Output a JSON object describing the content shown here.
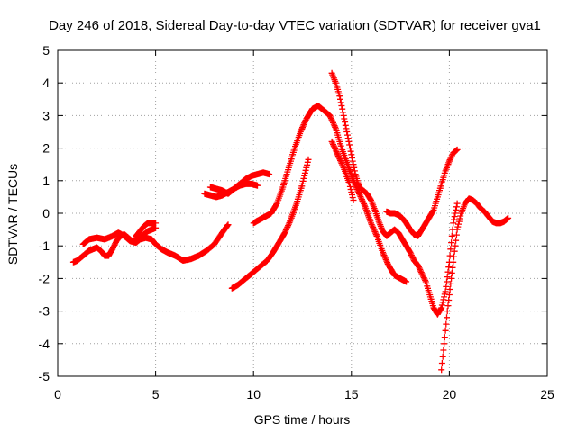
{
  "chart_data": {
    "type": "scatter",
    "title": "Day 246 of 2018, Sidereal Day-to-day VTEC variation (SDTVAR) for receiver gva1",
    "xlabel": "GPS time / hours",
    "ylabel": "SDTVAR / TECUs",
    "xlim": [
      0,
      25
    ],
    "ylim": [
      -5,
      5
    ],
    "xticks": [
      "0",
      "5",
      "10",
      "15",
      "20",
      "25"
    ],
    "yticks": [
      "-5",
      "-4",
      "-3",
      "-2",
      "-1",
      "0",
      "1",
      "2",
      "3",
      "4",
      "5"
    ],
    "grid": true,
    "legend": "none",
    "marker": "+",
    "color": "#ff0000",
    "series": [
      {
        "x": [
          0.8,
          1.0,
          1.2,
          1.4,
          1.6,
          1.8,
          2.0,
          2.2,
          2.4,
          2.6,
          2.8,
          3.0,
          3.2,
          3.4,
          3.6,
          3.8,
          4.0,
          4.2,
          4.4,
          4.6,
          4.8,
          5.0
        ],
        "y": [
          -1.5,
          -1.45,
          -1.35,
          -1.25,
          -1.15,
          -1.1,
          -1.05,
          -1.15,
          -1.3,
          -1.3,
          -1.1,
          -0.85,
          -0.7,
          -0.65,
          -0.75,
          -0.85,
          -0.8,
          -0.75,
          -0.65,
          -0.55,
          -0.5,
          -0.45
        ]
      },
      {
        "x": [
          1.3,
          1.6,
          2.0,
          2.4,
          2.8,
          3.1,
          3.4,
          3.7,
          4.0,
          4.2,
          4.5,
          4.8,
          5.0,
          5.3,
          5.6,
          6.0,
          6.4,
          6.8,
          7.2,
          7.6,
          8.0,
          8.4,
          8.7
        ],
        "y": [
          -0.95,
          -0.8,
          -0.75,
          -0.8,
          -0.7,
          -0.6,
          -0.7,
          -0.85,
          -0.9,
          -0.8,
          -0.75,
          -0.8,
          -0.95,
          -1.1,
          -1.2,
          -1.3,
          -1.45,
          -1.4,
          -1.3,
          -1.15,
          -0.95,
          -0.6,
          -0.35
        ]
      },
      {
        "x": [
          4.0,
          4.2,
          4.4,
          4.6,
          4.8,
          5.0
        ],
        "y": [
          -0.7,
          -0.55,
          -0.4,
          -0.3,
          -0.3,
          -0.3
        ]
      },
      {
        "x": [
          7.5,
          7.8,
          8.1,
          8.4,
          8.7,
          9.0,
          9.3,
          9.6,
          9.9,
          10.2
        ],
        "y": [
          0.6,
          0.55,
          0.5,
          0.55,
          0.65,
          0.75,
          0.85,
          0.9,
          0.9,
          0.85
        ]
      },
      {
        "x": [
          7.8,
          8.1,
          8.4,
          8.7,
          9.0,
          9.3,
          9.6,
          9.9,
          10.2,
          10.5,
          10.8
        ],
        "y": [
          0.8,
          0.75,
          0.7,
          0.6,
          0.75,
          0.9,
          1.05,
          1.15,
          1.2,
          1.25,
          1.2
        ]
      },
      {
        "x": [
          8.9,
          9.2,
          9.5,
          9.8,
          10.1,
          10.4,
          10.7,
          11.0,
          11.3,
          11.6,
          11.9,
          12.2,
          12.5,
          12.8
        ],
        "y": [
          -2.3,
          -2.2,
          -2.05,
          -1.9,
          -1.75,
          -1.6,
          -1.45,
          -1.2,
          -0.9,
          -0.6,
          -0.2,
          0.3,
          0.9,
          1.65
        ]
      },
      {
        "x": [
          10.0,
          10.3,
          10.6,
          10.9,
          11.2,
          11.5,
          11.8,
          12.1,
          12.4,
          12.7,
          13.0,
          13.3,
          13.6,
          13.9,
          14.2,
          14.5,
          14.8,
          15.1,
          15.4,
          15.7,
          16.0,
          16.3,
          16.6,
          16.9,
          17.2,
          17.5,
          17.8
        ],
        "y": [
          -0.3,
          -0.2,
          -0.1,
          0.0,
          0.3,
          0.8,
          1.4,
          2.0,
          2.5,
          2.9,
          3.2,
          3.3,
          3.15,
          3.0,
          2.6,
          2.0,
          1.5,
          1.0,
          0.6,
          0.2,
          -0.3,
          -0.7,
          -1.2,
          -1.6,
          -1.9,
          -2.0,
          -2.1
        ]
      },
      {
        "x": [
          14.0,
          14.2,
          14.4,
          14.6,
          14.8,
          15.0,
          15.2,
          15.4,
          15.6,
          15.8,
          16.0,
          16.2,
          16.4,
          16.6,
          16.8,
          17.0,
          17.2,
          17.4,
          17.6,
          17.8,
          18.0,
          18.2,
          18.4,
          18.6,
          18.8,
          19.0,
          19.2,
          19.4,
          19.6,
          19.8,
          20.0,
          20.2,
          20.4
        ],
        "y": [
          4.3,
          4.0,
          3.6,
          3.0,
          2.4,
          1.8,
          1.2,
          0.8,
          0.7,
          0.6,
          0.4,
          0.1,
          -0.25,
          -0.55,
          -0.7,
          -0.6,
          -0.5,
          -0.6,
          -0.8,
          -1.0,
          -1.2,
          -1.45,
          -1.6,
          -1.85,
          -2.1,
          -2.5,
          -2.9,
          -3.1,
          -2.9,
          -2.4,
          -1.5,
          -0.3,
          0.3
        ]
      },
      {
        "x": [
          14.0,
          14.3,
          14.6,
          14.9,
          15.1
        ],
        "y": [
          2.2,
          1.8,
          1.4,
          0.9,
          0.4
        ]
      },
      {
        "x": [
          16.8,
          17.0,
          17.2,
          17.4,
          17.6,
          17.8,
          18.0,
          18.2,
          18.4,
          18.6,
          18.8,
          19.0,
          19.2,
          19.4,
          19.6,
          19.8,
          20.0,
          20.2,
          20.4
        ],
        "y": [
          0.05,
          0.0,
          0.0,
          -0.05,
          -0.15,
          -0.3,
          -0.5,
          -0.65,
          -0.7,
          -0.5,
          -0.3,
          -0.1,
          0.1,
          0.5,
          0.9,
          1.3,
          1.6,
          1.85,
          1.95
        ]
      },
      {
        "x": [
          19.6,
          19.7,
          19.8,
          19.9,
          20.0,
          20.1,
          20.2,
          20.3,
          20.4,
          20.6,
          20.8,
          21.0,
          21.2,
          21.4,
          21.6,
          21.8,
          22.0,
          22.2,
          22.4,
          22.6,
          22.8,
          23.0
        ],
        "y": [
          -4.8,
          -4.2,
          -3.6,
          -3.0,
          -2.5,
          -2.0,
          -1.5,
          -1.0,
          -0.5,
          0.0,
          0.3,
          0.45,
          0.4,
          0.3,
          0.15,
          0.05,
          -0.1,
          -0.25,
          -0.3,
          -0.3,
          -0.25,
          -0.15
        ]
      }
    ]
  }
}
